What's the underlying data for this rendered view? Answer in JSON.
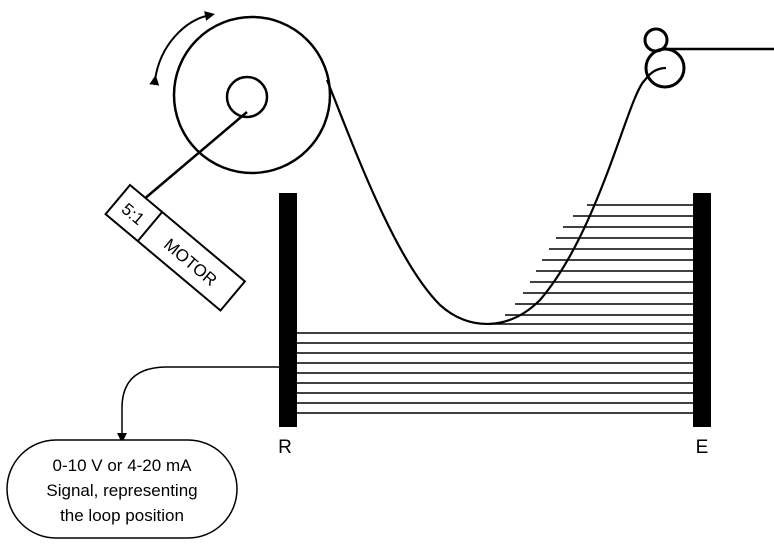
{
  "motor": {
    "ratio_label": "5:1",
    "label": "MOTOR"
  },
  "sensor": {
    "receiver_label": "R",
    "emitter_label": "E"
  },
  "callout": {
    "lines": [
      "0-10 V or 4-20 mA",
      "Signal, representing",
      "the loop position"
    ]
  },
  "colors": {
    "stroke": "#000000",
    "background": "#ffffff"
  }
}
